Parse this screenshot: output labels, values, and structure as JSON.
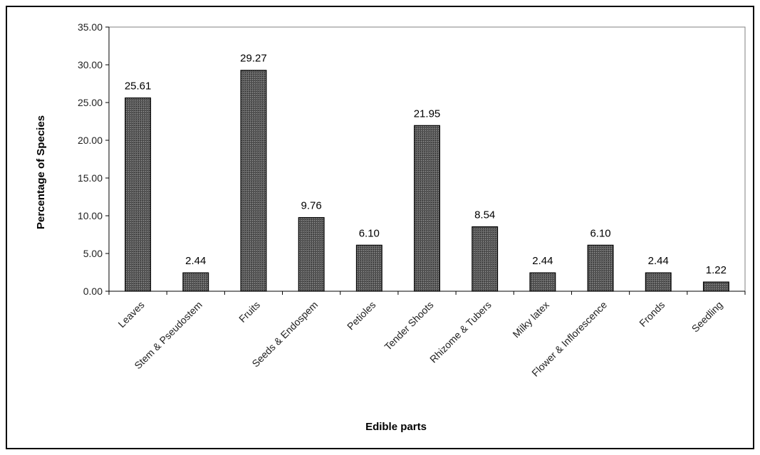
{
  "chart_data": {
    "type": "bar",
    "title": "",
    "xlabel": "Edible parts",
    "ylabel": "Percentage of Species",
    "categories": [
      "Leaves",
      "Stem & Pseudostem",
      "Fruits",
      "Seeds & Endospem",
      "Petioles",
      "Tender Shoots",
      "Rhizome & Tubers",
      "Milky latex",
      "Flower & Inflorescence",
      "Fronds",
      "Seedling"
    ],
    "values": [
      25.61,
      2.44,
      29.27,
      9.76,
      6.1,
      21.95,
      8.54,
      2.44,
      6.1,
      2.44,
      1.22
    ],
    "value_labels": [
      "25.61",
      "2.44",
      "29.27",
      "9.76",
      "6.10",
      "21.95",
      "8.54",
      "2.44",
      "6.10",
      "2.44",
      "1.22"
    ],
    "yticks": [
      "0.00",
      "5.00",
      "10.00",
      "15.00",
      "20.00",
      "25.00",
      "30.00",
      "35.00"
    ],
    "ylim": [
      0,
      35
    ],
    "grid": false,
    "legend": "none",
    "bar_color": "#555555",
    "bar_edge_color": "#000000"
  }
}
